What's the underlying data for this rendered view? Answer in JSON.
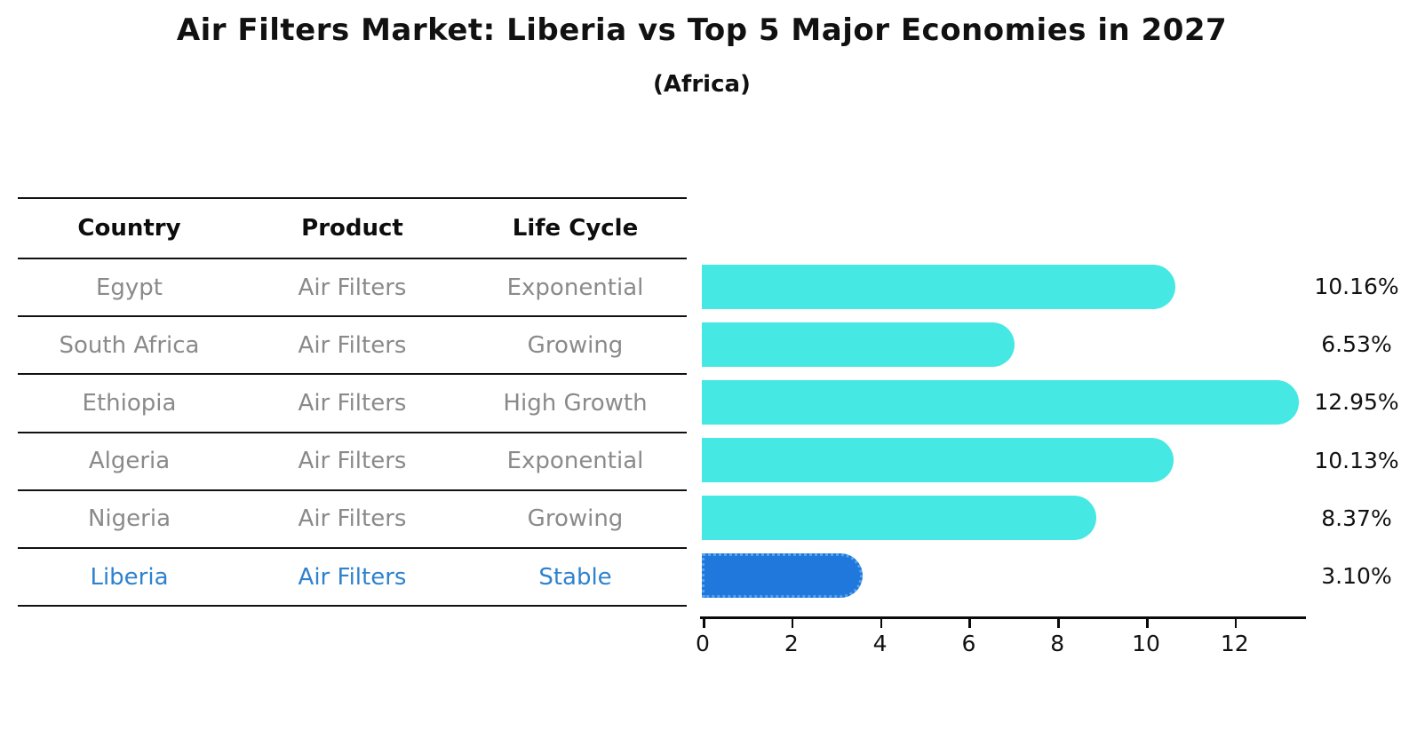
{
  "title": "Air Filters Market: Liberia vs Top 5 Major Economies in 2027",
  "subtitle": "(Africa)",
  "table": {
    "headers": {
      "country": "Country",
      "product": "Product",
      "life_cycle": "Life Cycle"
    },
    "rows": [
      {
        "country": "Egypt",
        "product": "Air Filters",
        "life_cycle": "Exponential"
      },
      {
        "country": "South Africa",
        "product": "Air Filters",
        "life_cycle": "Growing"
      },
      {
        "country": "Ethiopia",
        "product": "Air Filters",
        "life_cycle": "High Growth"
      },
      {
        "country": "Algeria",
        "product": "Air Filters",
        "life_cycle": "Exponential"
      },
      {
        "country": "Nigeria",
        "product": "Air Filters",
        "life_cycle": "Growing"
      },
      {
        "country": "Liberia",
        "product": "Air Filters",
        "life_cycle": "Stable"
      }
    ],
    "highlight_row_index": 5
  },
  "chart_data": {
    "type": "bar",
    "orientation": "horizontal",
    "title": "Air Filters Market: Liberia vs Top 5 Major Economies in 2027",
    "subtitle": "(Africa)",
    "categories": [
      "Egypt",
      "South Africa",
      "Ethiopia",
      "Algeria",
      "Nigeria",
      "Liberia"
    ],
    "values": [
      10.16,
      6.53,
      12.95,
      10.13,
      8.37,
      3.1
    ],
    "value_labels": [
      "10.16%",
      "6.53%",
      "12.95%",
      "10.13%",
      "8.37%",
      "3.10%"
    ],
    "xlabel": "",
    "ylabel": "",
    "xlim": [
      0,
      13.65
    ],
    "xticks": [
      0,
      2,
      4,
      6,
      8,
      10,
      12
    ],
    "grid": false,
    "legend": false,
    "colors": {
      "bar": "#45e8e2",
      "highlight_bar": "#2077dc",
      "highlight_border": "#55a4ec",
      "highlight_text": "#2e82ce",
      "axis": "#0a0a0a",
      "table_text": "#8a8a8a",
      "heading_text": "#111111"
    },
    "highlight_index": 5
  }
}
